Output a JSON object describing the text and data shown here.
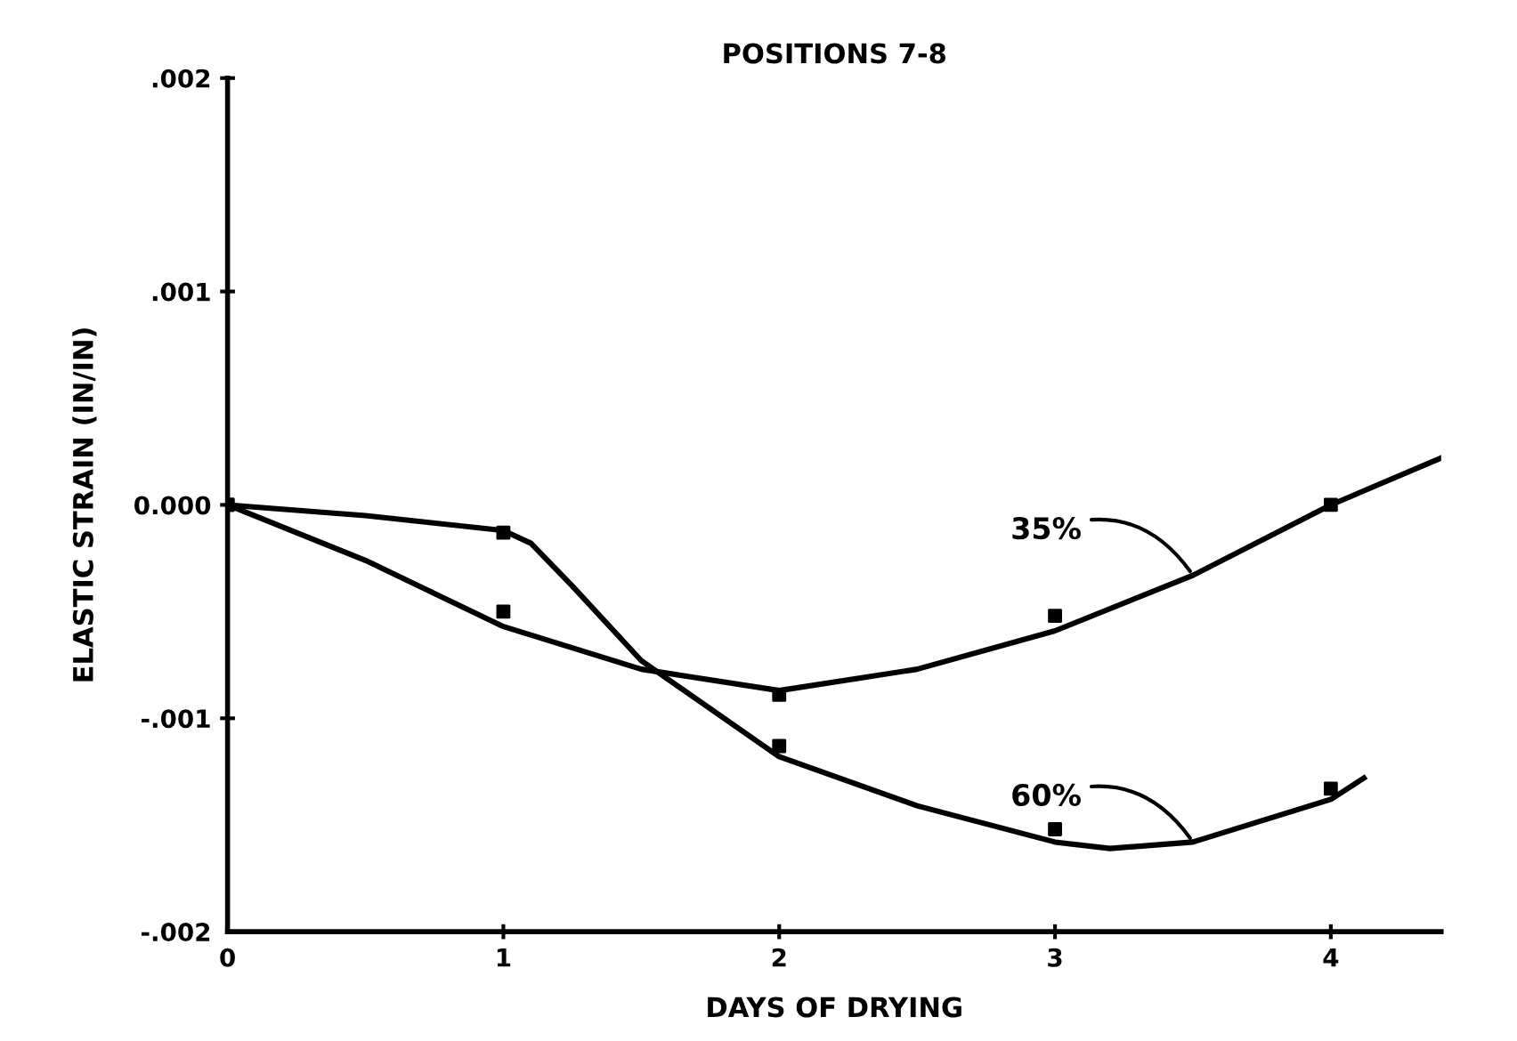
{
  "chart_data": {
    "type": "line",
    "title": "POSITIONS 7-8",
    "xlabel": "DAYS OF DRYING",
    "ylabel": "ELASTIC STRAIN (IN/IN)",
    "xlim": [
      0,
      4.4
    ],
    "xticks": [
      0,
      1,
      2,
      3,
      4
    ],
    "ylim": [
      -0.002,
      0.002
    ],
    "yticks": [
      {
        "value": 0.002,
        "label": ".002"
      },
      {
        "value": 0.001,
        "label": ".001"
      },
      {
        "value": 0,
        "label": "0.000"
      },
      {
        "value": -0.001,
        "label": "-.001"
      },
      {
        "value": -0.002,
        "label": "-.002"
      }
    ],
    "grid": false,
    "legend": false,
    "series": [
      {
        "type": "scatter",
        "marker": "square",
        "color": "#000000",
        "x": [
          0,
          1,
          2,
          3,
          4
        ],
        "values": [
          0,
          -0.0005,
          -0.00089,
          -0.00052,
          0.0
        ]
      },
      {
        "type": "scatter",
        "marker": "square",
        "color": "#000000",
        "x": [
          0,
          1,
          2,
          3,
          4
        ],
        "values": [
          0,
          -0.00013,
          -0.00113,
          -0.00152,
          -0.00133
        ]
      },
      {
        "marker": "none",
        "color": "#000000",
        "x": [
          0,
          0.5,
          1,
          1.5,
          2,
          2.5,
          3,
          3.5,
          4,
          4.4
        ],
        "values": [
          0,
          -0.00026,
          -0.00057,
          -0.00077,
          -0.00087,
          -0.00077,
          -0.00059,
          -0.00033,
          0.0,
          0.00022
        ]
      },
      {
        "marker": "none",
        "color": "#000000",
        "x": [
          0,
          0.5,
          1,
          1.1,
          1.25,
          1.5,
          2,
          2.5,
          3,
          3.2,
          3.5,
          4,
          4.12
        ],
        "values": [
          0,
          -5e-05,
          -0.00012,
          -0.00018,
          -0.00038,
          -0.00073,
          -0.00118,
          -0.00141,
          -0.00158,
          -0.00161,
          -0.00158,
          -0.00138,
          -0.00128
        ]
      }
    ],
    "annotations": [
      {
        "text": "35%",
        "x": 3.5,
        "y": -0.00033
      },
      {
        "text": "60%",
        "x": 3.5,
        "y": -0.00158
      }
    ]
  }
}
